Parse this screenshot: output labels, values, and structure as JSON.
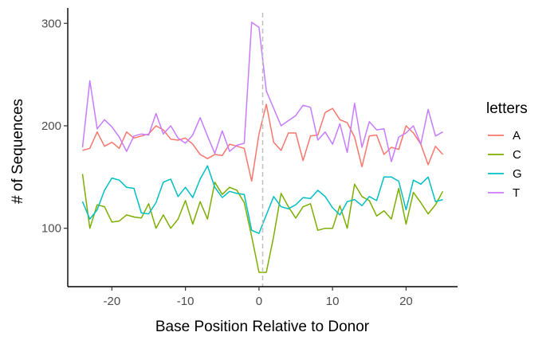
{
  "chart_data": {
    "type": "line",
    "xlabel": "Base Position Relative to Donor",
    "ylabel": "# of Sequences",
    "xlim": [
      -26,
      27
    ],
    "ylim": [
      43,
      315
    ],
    "x_ticks": [
      -20,
      -10,
      0,
      10,
      20
    ],
    "x_tick_labels": [
      "-20",
      "-10",
      "0",
      "10",
      "20"
    ],
    "y_ticks": [
      100,
      200,
      300
    ],
    "y_tick_labels": [
      "100",
      "200",
      "300"
    ],
    "grid": false,
    "vline": {
      "x": 0.5,
      "style": "dashed",
      "color": "#bfbfbf"
    },
    "legend": {
      "title": "letters",
      "position": "right"
    },
    "x": [
      -24,
      -23,
      -22,
      -21,
      -20,
      -19,
      -18,
      -17,
      -16,
      -15,
      -14,
      -13,
      -12,
      -11,
      -10,
      -9,
      -8,
      -7,
      -6,
      -5,
      -4,
      -3,
      -2,
      -1,
      0,
      1,
      2,
      3,
      4,
      5,
      6,
      7,
      8,
      9,
      10,
      11,
      12,
      13,
      14,
      15,
      16,
      17,
      18,
      19,
      20,
      21,
      22,
      23,
      24,
      25
    ],
    "series": [
      {
        "name": "A",
        "color": "#F8766D",
        "values": [
          176,
          178,
          194,
          180,
          184,
          178,
          194,
          188,
          190,
          192,
          200,
          196,
          187,
          186,
          188,
          182,
          172,
          168,
          172,
          171,
          182,
          180,
          178,
          146,
          192,
          221,
          184,
          176,
          193,
          193,
          166,
          190,
          191,
          213,
          217,
          206,
          203,
          189,
          160,
          190,
          191,
          172,
          179,
          177,
          200,
          193,
          182,
          162,
          180,
          172
        ]
      },
      {
        "name": "C",
        "color": "#7CAE00",
        "values": [
          153,
          100,
          123,
          121,
          106,
          107,
          113,
          111,
          110,
          124,
          100,
          113,
          100,
          109,
          127,
          104,
          126,
          109,
          145,
          133,
          140,
          137,
          125,
          92,
          57,
          57,
          92,
          134,
          121,
          110,
          121,
          124,
          98,
          100,
          100,
          122,
          100,
          143,
          131,
          127,
          112,
          117,
          109,
          139,
          104,
          135,
          125,
          114,
          123,
          136
        ]
      },
      {
        "name": "G",
        "color": "#00BFC4",
        "values": [
          126,
          109,
          118,
          137,
          149,
          147,
          140,
          139,
          115,
          114,
          125,
          145,
          148,
          131,
          140,
          130,
          148,
          161,
          140,
          130,
          136,
          134,
          133,
          98,
          95,
          113,
          131,
          121,
          119,
          123,
          130,
          129,
          137,
          131,
          120,
          113,
          126,
          128,
          122,
          131,
          127,
          150,
          150,
          146,
          118,
          147,
          143,
          150,
          126,
          128
        ]
      },
      {
        "name": "T",
        "color": "#C77CFF",
        "values": [
          179,
          244,
          197,
          206,
          199,
          189,
          175,
          190,
          192,
          191,
          212,
          192,
          200,
          188,
          183,
          191,
          208,
          190,
          173,
          195,
          175,
          181,
          183,
          301,
          296,
          234,
          217,
          200,
          205,
          210,
          220,
          218,
          186,
          194,
          182,
          202,
          174,
          222,
          179,
          204,
          196,
          197,
          165,
          189,
          193,
          200,
          182,
          216,
          190,
          194
        ]
      }
    ]
  }
}
